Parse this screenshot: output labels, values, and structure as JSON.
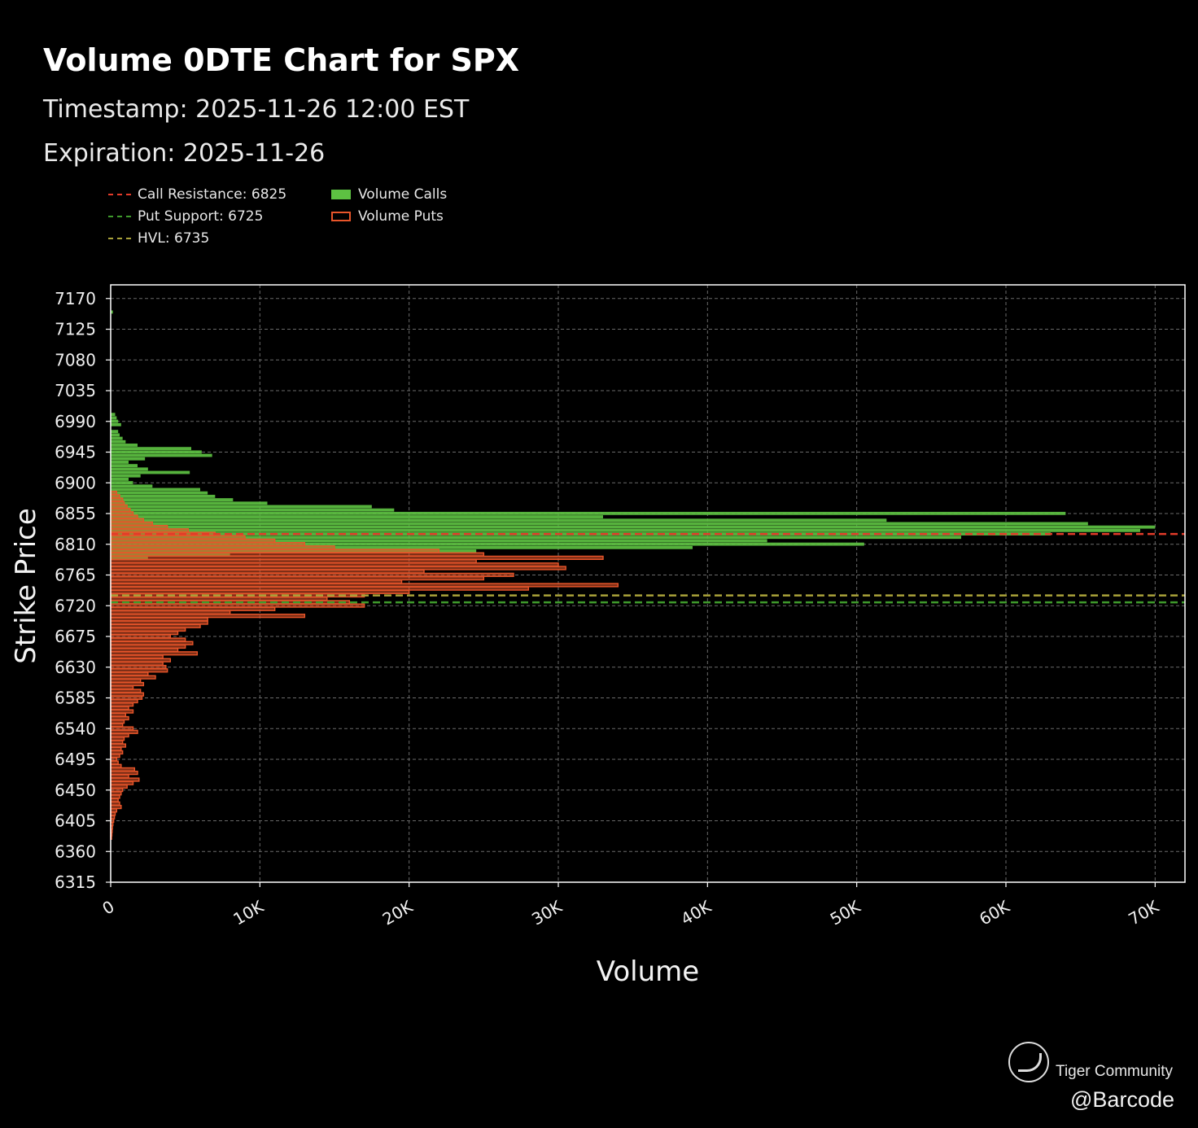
{
  "header": {
    "title": "Volume 0DTE Chart for SPX",
    "timestamp": "Timestamp: 2025-11-26 12:00 EST",
    "expiration": "Expiration: 2025-11-26"
  },
  "legend": {
    "call_resistance": "Call Resistance: 6825",
    "put_support": "Put Support: 6725",
    "hvl": "HVL: 6735",
    "volume_calls": "Volume Calls",
    "volume_puts": "Volume Puts"
  },
  "colors": {
    "calls": "#5dc142",
    "puts": "#e8552a",
    "call_resistance": "#e23b2a",
    "put_support": "#3f9a2c",
    "hvl": "#a9a23a",
    "grid": "#6a6a6a",
    "axis": "#ffffff"
  },
  "watermark": {
    "brand": "Tiger Community",
    "handle": "@Barcode",
    "logo_icon": "tiger-logo-icon"
  },
  "chart_data": {
    "type": "bar",
    "orientation": "horizontal",
    "xlabel": "Volume",
    "ylabel": "Strike Price",
    "xlim": [
      0,
      72000
    ],
    "ylim": [
      6315,
      7190
    ],
    "x_ticks": [
      0,
      10000,
      20000,
      30000,
      40000,
      50000,
      60000,
      70000
    ],
    "x_tick_labels": [
      "0",
      "10K",
      "20K",
      "30K",
      "40K",
      "50K",
      "60K",
      "70K"
    ],
    "y_ticks": [
      6315,
      6360,
      6405,
      6450,
      6495,
      6540,
      6585,
      6630,
      6675,
      6720,
      6765,
      6810,
      6855,
      6900,
      6945,
      6990,
      7035,
      7080,
      7125,
      7170
    ],
    "grid": true,
    "lines": [
      {
        "name": "Call Resistance",
        "value": 6825,
        "color": "#e23b2a"
      },
      {
        "name": "Put Support",
        "value": 6725,
        "color": "#3f9a2c"
      },
      {
        "name": "HVL",
        "value": 6735,
        "color": "#a9a23a"
      }
    ],
    "series": [
      {
        "name": "Volume Calls",
        "strikes": [
          7150,
          7000,
          6995,
          6990,
          6985,
          6975,
          6970,
          6965,
          6960,
          6955,
          6950,
          6945,
          6940,
          6935,
          6930,
          6925,
          6920,
          6915,
          6910,
          6905,
          6900,
          6895,
          6890,
          6885,
          6880,
          6875,
          6870,
          6865,
          6860,
          6855,
          6850,
          6845,
          6840,
          6835,
          6830,
          6825,
          6820,
          6815,
          6810,
          6805,
          6800,
          6795,
          6790
        ],
        "values": [
          150,
          300,
          400,
          500,
          700,
          500,
          600,
          800,
          1000,
          1800,
          5400,
          6100,
          6800,
          2300,
          1200,
          1800,
          2500,
          5300,
          2000,
          1200,
          1500,
          2800,
          6000,
          6500,
          7000,
          8200,
          10500,
          17500,
          19000,
          64000,
          33000,
          52000,
          65500,
          70000,
          69000,
          63000,
          57000,
          44000,
          50500,
          39000,
          24500,
          8000,
          2500
        ]
      },
      {
        "name": "Volume Puts",
        "strikes": [
          6885,
          6880,
          6875,
          6870,
          6865,
          6860,
          6855,
          6850,
          6845,
          6840,
          6835,
          6830,
          6825,
          6820,
          6815,
          6810,
          6805,
          6800,
          6795,
          6790,
          6785,
          6780,
          6775,
          6770,
          6765,
          6760,
          6755,
          6750,
          6745,
          6740,
          6735,
          6730,
          6725,
          6720,
          6715,
          6710,
          6705,
          6700,
          6695,
          6690,
          6685,
          6680,
          6675,
          6670,
          6665,
          6660,
          6655,
          6650,
          6645,
          6640,
          6635,
          6630,
          6625,
          6620,
          6615,
          6610,
          6605,
          6600,
          6595,
          6590,
          6585,
          6580,
          6575,
          6570,
          6565,
          6560,
          6555,
          6550,
          6545,
          6540,
          6535,
          6530,
          6525,
          6520,
          6515,
          6510,
          6505,
          6500,
          6495,
          6490,
          6485,
          6480,
          6475,
          6470,
          6465,
          6460,
          6455,
          6450,
          6445,
          6440,
          6435,
          6430,
          6425,
          6420,
          6415,
          6410,
          6405,
          6400,
          6395,
          6390,
          6385,
          6380
        ],
        "values": [
          400,
          600,
          800,
          900,
          1100,
          1300,
          1500,
          1800,
          2200,
          2800,
          3800,
          5200,
          7000,
          9000,
          11000,
          13000,
          15000,
          22000,
          25000,
          33000,
          24500,
          30000,
          30500,
          21000,
          27000,
          25000,
          19500,
          34000,
          28000,
          20000,
          17000,
          14500,
          16000,
          17000,
          11000,
          8000,
          13000,
          6500,
          6500,
          6000,
          5000,
          4500,
          4000,
          5000,
          5500,
          5000,
          4500,
          5800,
          3500,
          4000,
          3500,
          3700,
          3800,
          2500,
          3000,
          2000,
          2200,
          1500,
          2000,
          2200,
          2100,
          1800,
          1500,
          1200,
          1500,
          1000,
          1200,
          900,
          800,
          1500,
          1800,
          1200,
          900,
          800,
          1000,
          700,
          800,
          600,
          400,
          500,
          700,
          1600,
          1800,
          1200,
          1900,
          1500,
          1100,
          800,
          700,
          600,
          500,
          600,
          700,
          400,
          300,
          250,
          200,
          150,
          120,
          100,
          80,
          60
        ]
      }
    ]
  }
}
